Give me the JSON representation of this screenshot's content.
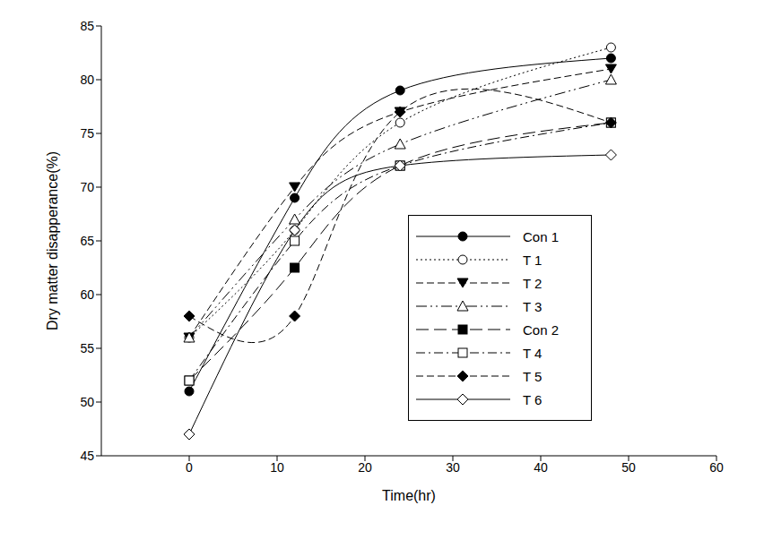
{
  "chart_data": {
    "type": "line",
    "x_label": "Time(hr)",
    "y_label": "Dry matter disapperance(%)",
    "x": [
      0,
      12,
      24,
      48
    ],
    "xlim": [
      -10,
      60
    ],
    "xticks": [
      0,
      10,
      20,
      30,
      40,
      50,
      60
    ],
    "ylim": [
      45,
      85
    ],
    "yticks": [
      45,
      50,
      55,
      60,
      65,
      70,
      75,
      80,
      85
    ],
    "grid": false,
    "legend": "right",
    "series": [
      {
        "name": "Con 1",
        "color": "#000000",
        "marker": "circle",
        "line_style": "solid",
        "values": [
          51,
          69,
          79,
          82
        ]
      },
      {
        "name": "T 1",
        "color": "#000000",
        "marker": "circle_open",
        "line_style": "dotted",
        "values": [
          56,
          66,
          76,
          83
        ]
      },
      {
        "name": "T 2",
        "color": "#000000",
        "marker": "triangle_down",
        "line_style": "dashed",
        "values": [
          56,
          70,
          77,
          81
        ]
      },
      {
        "name": "T 3",
        "color": "#000000",
        "marker": "triangle_open",
        "line_style": "dashdotdot",
        "values": [
          56,
          67,
          74,
          80
        ]
      },
      {
        "name": "Con 2",
        "color": "#000000",
        "marker": "square",
        "line_style": "longdash",
        "values": [
          52,
          62.5,
          72,
          76
        ]
      },
      {
        "name": "T 4",
        "color": "#000000",
        "marker": "square_open",
        "line_style": "dashdot",
        "values": [
          52,
          65,
          72,
          76
        ]
      },
      {
        "name": "T 5",
        "color": "#000000",
        "marker": "diamond",
        "line_style": "dashed",
        "values": [
          58,
          58,
          77,
          76
        ]
      },
      {
        "name": "T 6",
        "color": "#000000",
        "marker": "diamond_open",
        "line_style": "solid",
        "values": [
          47,
          66,
          72,
          73
        ]
      }
    ]
  }
}
